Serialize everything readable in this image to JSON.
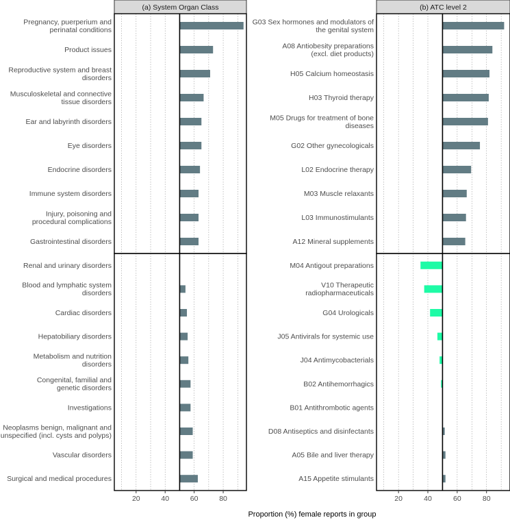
{
  "chart_data": {
    "type": "bar",
    "xlabel": "Proportion (%) female reports in group",
    "xlim": [
      5,
      96
    ],
    "xticks": [
      20,
      40,
      60,
      80
    ],
    "reference_line": 50,
    "colors": {
      "high": "#627c84",
      "low": "#1efba6"
    },
    "panels": [
      {
        "title": "(a) System Organ Class",
        "top_group": [
          {
            "label": [
              "Pregnancy, puerperium and",
              "perinatal conditions"
            ],
            "value": 94
          },
          {
            "label": [
              "Product issues"
            ],
            "value": 73
          },
          {
            "label": [
              "Reproductive system and breast",
              "disorders"
            ],
            "value": 71
          },
          {
            "label": [
              "Musculoskeletal and connective",
              "tissue disorders"
            ],
            "value": 66.5
          },
          {
            "label": [
              "Ear and labyrinth disorders"
            ],
            "value": 65
          },
          {
            "label": [
              "Eye disorders"
            ],
            "value": 65
          },
          {
            "label": [
              "Endocrine disorders"
            ],
            "value": 64
          },
          {
            "label": [
              "Immune system disorders"
            ],
            "value": 63
          },
          {
            "label": [
              "Injury, poisoning and",
              "procedural complications"
            ],
            "value": 63
          },
          {
            "label": [
              "Gastrointestinal disorders"
            ],
            "value": 63
          }
        ],
        "bottom_group": [
          {
            "label": [
              "Renal and urinary disorders"
            ],
            "value": 50
          },
          {
            "label": [
              "Blood and lymphatic system",
              "disorders"
            ],
            "value": 54
          },
          {
            "label": [
              "Cardiac disorders"
            ],
            "value": 55
          },
          {
            "label": [
              "Hepatobiliary disorders"
            ],
            "value": 55.5
          },
          {
            "label": [
              "Metabolism and nutrition",
              "disorders"
            ],
            "value": 56
          },
          {
            "label": [
              "Congenital, familial and",
              "genetic disorders"
            ],
            "value": 57.5
          },
          {
            "label": [
              "Investigations"
            ],
            "value": 57.5
          },
          {
            "label": [
              "Neoplasms benign, malignant and",
              "unspecified (incl. cysts and polyps)"
            ],
            "value": 59
          },
          {
            "label": [
              "Vascular disorders"
            ],
            "value": 59
          },
          {
            "label": [
              "Surgical and medical procedures"
            ],
            "value": 62.5
          }
        ]
      },
      {
        "title": "(b) ATC level 2",
        "top_group": [
          {
            "label": [
              "G03 Sex hormones and modulators of",
              "the genital system"
            ],
            "value": 92
          },
          {
            "label": [
              "A08 Antiobesity preparations",
              "(excl. diet products)"
            ],
            "value": 84
          },
          {
            "label": [
              "H05 Calcium homeostasis"
            ],
            "value": 82
          },
          {
            "label": [
              "H03 Thyroid therapy"
            ],
            "value": 81.5
          },
          {
            "label": [
              "M05 Drugs for treatment of bone",
              "diseases"
            ],
            "value": 81
          },
          {
            "label": [
              "G02 Other gynecologicals"
            ],
            "value": 75.5
          },
          {
            "label": [
              "L02 Endocrine therapy"
            ],
            "value": 69.5
          },
          {
            "label": [
              "M03 Muscle relaxants"
            ],
            "value": 66.5
          },
          {
            "label": [
              "L03 Immunostimulants"
            ],
            "value": 66
          },
          {
            "label": [
              "A12 Mineral supplements"
            ],
            "value": 65.5
          }
        ],
        "bottom_group": [
          {
            "label": [
              "M04 Antigout preparations"
            ],
            "value": 35
          },
          {
            "label": [
              "V10 Therapeutic",
              "radiopharmaceuticals"
            ],
            "value": 37.5
          },
          {
            "label": [
              "G04 Urologicals"
            ],
            "value": 41.5
          },
          {
            "label": [
              "J05 Antivirals for systemic use"
            ],
            "value": 46.5
          },
          {
            "label": [
              "J04 Antimycobacterials"
            ],
            "value": 48
          },
          {
            "label": [
              "B02 Antihemorrhagics"
            ],
            "value": 49
          },
          {
            "label": [
              "B01 Antithrombotic agents"
            ],
            "value": 50
          },
          {
            "label": [
              "D08 Antiseptics and disinfectants"
            ],
            "value": 51.5
          },
          {
            "label": [
              "A05 Bile and liver therapy"
            ],
            "value": 52
          },
          {
            "label": [
              "A15 Appetite stimulants"
            ],
            "value": 52
          }
        ]
      }
    ]
  }
}
